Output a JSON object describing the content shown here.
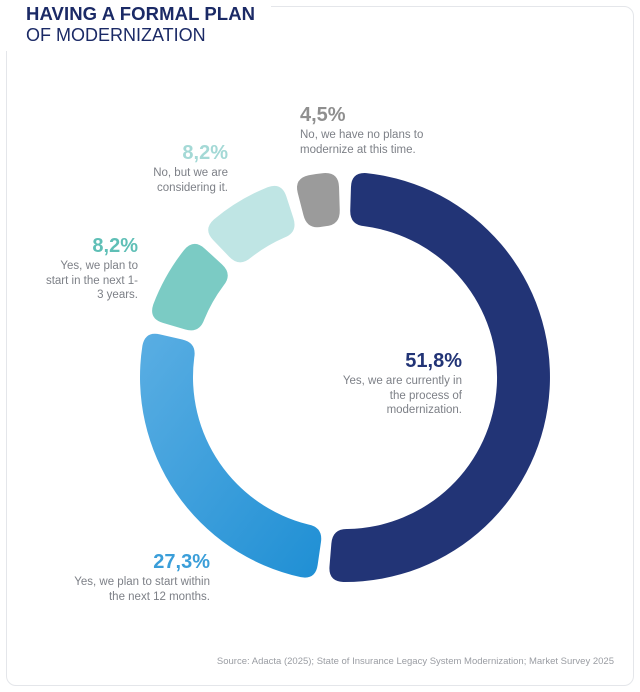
{
  "title": {
    "line1": "HAVING A FORMAL PLAN",
    "line2": "OF MODERNIZATION"
  },
  "chart_data": {
    "type": "pie",
    "slices": [
      {
        "value": 51.8,
        "label": "51,8%",
        "text": "Yes, we are currently in the process of modernization.",
        "color": "#223476"
      },
      {
        "value": 27.3,
        "label": "27,3%",
        "text": "Yes, we plan to start within the next 12 months.",
        "color": "#3a9ed9"
      },
      {
        "value": 8.2,
        "label": "8,2%",
        "text": "Yes, we plan to start in the next 1-3 years.",
        "color": "#7bcbc4"
      },
      {
        "value": 8.2,
        "label": "8,2%",
        "text": "No, but we are considering it.",
        "color": "#bfe5e4"
      },
      {
        "value": 4.5,
        "label": "4,5%",
        "text": "No, we have no plans to modernize at this time.",
        "color": "#9b9b9b"
      }
    ]
  },
  "source": "Source: Adacta (2025); State of Insurance Legacy System Modernization; Market Survey 2025"
}
